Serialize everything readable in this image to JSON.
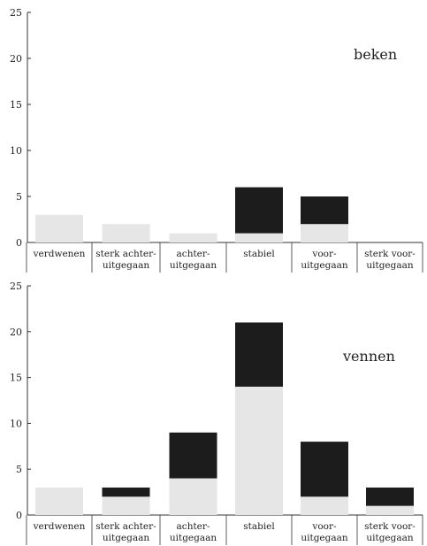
{
  "chart_data": [
    {
      "type": "bar",
      "stacked": true,
      "annotation": "beken",
      "categories": [
        [
          "verdwenen"
        ],
        [
          "sterk achter-",
          "uitgegaan"
        ],
        [
          "achter-",
          "uitgegaan"
        ],
        [
          "stabiel"
        ],
        [
          "voor-",
          "uitgegaan"
        ],
        [
          "sterk voor-",
          "uitgegaan"
        ]
      ],
      "series": [
        {
          "color": "#e6e6e6",
          "values": [
            3,
            2,
            1,
            1,
            2,
            0
          ]
        },
        {
          "color": "#1c1c1c",
          "values": [
            0,
            0,
            0,
            5,
            3,
            0
          ]
        }
      ],
      "yticks": [
        0,
        5,
        10,
        15,
        20,
        25
      ],
      "ylim": [
        0,
        25
      ],
      "grid": false
    },
    {
      "type": "bar",
      "stacked": true,
      "annotation": "vennen",
      "categories": [
        [
          "verdwenen"
        ],
        [
          "sterk achter-",
          "uitgegaan"
        ],
        [
          "achter-",
          "uitgegaan"
        ],
        [
          "stabiel"
        ],
        [
          "voor-",
          "uitgegaan"
        ],
        [
          "sterk voor-",
          "uitgegaan"
        ]
      ],
      "series": [
        {
          "color": "#e6e6e6",
          "values": [
            3,
            2,
            4,
            14,
            2,
            1
          ]
        },
        {
          "color": "#1c1c1c",
          "values": [
            0,
            1,
            5,
            7,
            6,
            2
          ]
        }
      ],
      "yticks": [
        0,
        5,
        10,
        15,
        20,
        25
      ],
      "ylim": [
        0,
        25
      ],
      "grid": false
    }
  ]
}
